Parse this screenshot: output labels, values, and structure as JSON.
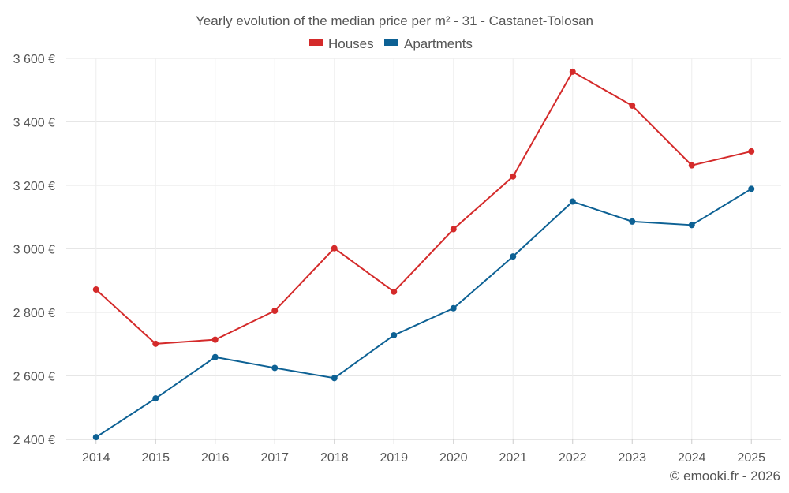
{
  "chart_data": {
    "type": "line",
    "title": "Yearly evolution of the median price per m² - 31 - Castanet-Tolosan",
    "categories": [
      "2014",
      "2015",
      "2016",
      "2017",
      "2018",
      "2019",
      "2020",
      "2021",
      "2022",
      "2023",
      "2024",
      "2025"
    ],
    "series": [
      {
        "name": "Houses",
        "color": "#d42a2a",
        "values": [
          2872,
          2701,
          2714,
          2805,
          3002,
          2865,
          3062,
          3228,
          3558,
          3451,
          3263,
          3307
        ]
      },
      {
        "name": "Apartments",
        "color": "#0d6194",
        "values": [
          2407,
          2529,
          2659,
          2625,
          2593,
          2728,
          2813,
          2976,
          3149,
          3086,
          3075,
          3189
        ]
      }
    ],
    "xlabel": "",
    "ylabel": "",
    "ylim": [
      2400,
      3600
    ],
    "yticks": [
      2400,
      2600,
      2800,
      3000,
      3200,
      3400,
      3600
    ],
    "ytick_labels": [
      "2 400 €",
      "2 600 €",
      "2 800 €",
      "3 000 €",
      "3 200 €",
      "3 400 €",
      "3 600 €"
    ],
    "grid": true,
    "legend_position": "top-center"
  },
  "credit": "© emooki.fr - 2026"
}
